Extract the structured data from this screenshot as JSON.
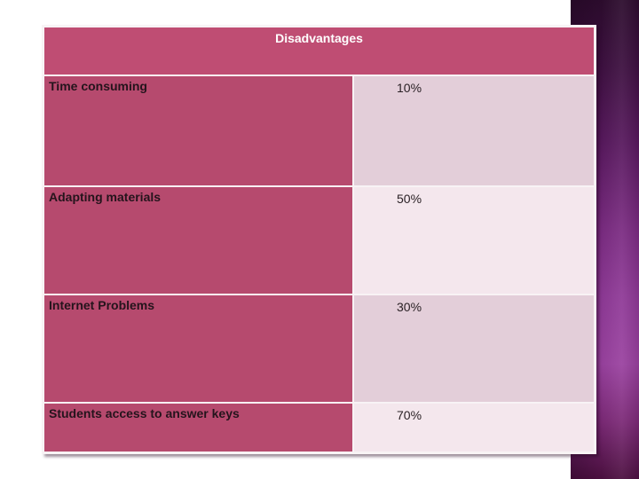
{
  "slide": {
    "title": "Disadvantages"
  },
  "table": {
    "header": "Disadvantages",
    "rows": [
      {
        "label": "Time consuming",
        "value": "10%"
      },
      {
        "label": "Adapting materials",
        "value": "50%"
      },
      {
        "label": "Internet Problems",
        "value": "30%"
      },
      {
        "label": "Students access to answer keys",
        "value": "70%"
      }
    ]
  },
  "chart_data": {
    "type": "table",
    "title": "Disadvantages",
    "categories": [
      "Time consuming",
      "Adapting materials",
      "Internet Problems",
      "Students access to answer keys"
    ],
    "values": [
      10,
      50,
      30,
      70
    ],
    "value_labels": [
      "10%",
      "50%",
      "30%",
      "70%"
    ],
    "unit": "percent",
    "layout": "two-column table, labels left, percentages right, header row spans both columns"
  },
  "colors": {
    "slide_bg": "#ffffff",
    "header_bg": "#bf4d73",
    "header_text": "#ffffff",
    "label_cell_bg": "#b64a6e",
    "label_text": "#24141c",
    "value_cell_bg_dark": "#e3ced9",
    "value_cell_bg_light": "#f4e7ed",
    "value_text": "#2a2125",
    "table_border": "#f8f3f5",
    "strip_top": "#2c0c2d",
    "strip_mid": "#9a42a0",
    "strip_bottom": "#4c1040"
  }
}
